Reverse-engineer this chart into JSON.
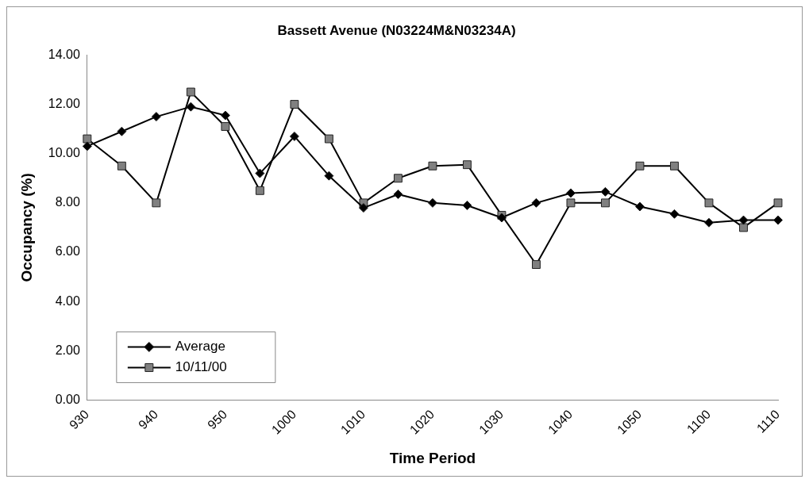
{
  "chart_data": {
    "type": "line",
    "title": "Bassett Avenue (N03224M&N03234A)",
    "xlabel": "Time Period",
    "ylabel": "Occupancy (%)",
    "categories": [
      "930",
      null,
      "940",
      null,
      "950",
      null,
      "1000",
      null,
      "1010",
      null,
      "1020",
      null,
      "1030",
      null,
      "1040",
      null,
      "1050",
      null,
      "1100",
      null,
      "1110"
    ],
    "series": [
      {
        "name": "Average",
        "color": "#000000",
        "marker": "diamond",
        "values": [
          10.3,
          10.9,
          11.5,
          11.9,
          11.55,
          9.2,
          10.7,
          9.1,
          7.8,
          8.35,
          8.0,
          7.9,
          7.4,
          8.0,
          8.4,
          8.45,
          7.85,
          7.55,
          7.2,
          7.3,
          7.3
        ]
      },
      {
        "name": "10/11/00",
        "color": "#808080",
        "marker": "square",
        "values": [
          10.6,
          9.5,
          8.0,
          12.5,
          11.1,
          8.5,
          12.0,
          10.6,
          8.0,
          9.0,
          9.5,
          9.55,
          7.5,
          5.5,
          8.0,
          8.0,
          9.5,
          9.5,
          8.0,
          7.0,
          8.0
        ]
      }
    ],
    "ylim": [
      0,
      14
    ],
    "yticks": [
      {
        "value": 0,
        "label": "0.00"
      },
      {
        "value": 2,
        "label": "2.00"
      },
      {
        "value": 4,
        "label": "4.00"
      },
      {
        "value": 6,
        "label": "6.00"
      },
      {
        "value": 8,
        "label": "8.00"
      },
      {
        "value": 10,
        "label": "10.00"
      },
      {
        "value": 12,
        "label": "12.00"
      },
      {
        "value": 14,
        "label": "14.00"
      }
    ],
    "grid": false,
    "legend": "bottom left",
    "line_style": "solid"
  }
}
